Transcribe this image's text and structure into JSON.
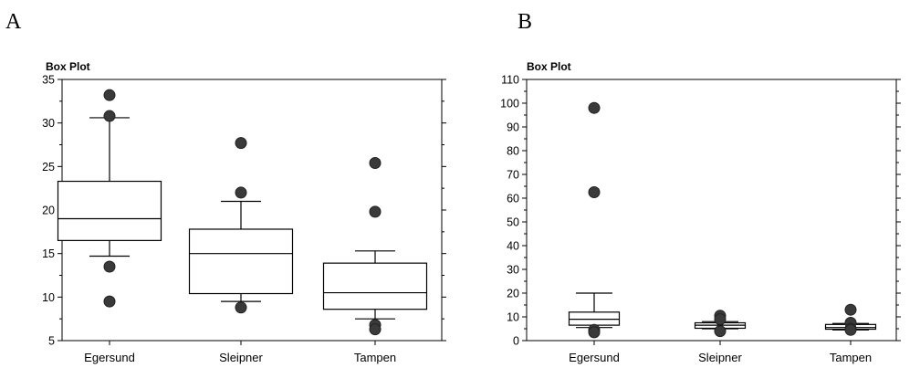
{
  "panel_labels": [
    "A",
    "B"
  ],
  "chart_data": [
    {
      "type": "box",
      "title": "Box Plot",
      "categories": [
        "Egersund",
        "Sleipner",
        "Tampen"
      ],
      "yticks": [
        5,
        10,
        15,
        20,
        25,
        30,
        35
      ],
      "ylim": [
        5,
        35
      ],
      "boxes": [
        {
          "whisker_low": 14.7,
          "q1": 16.5,
          "median": 19.0,
          "q3": 23.3,
          "whisker_high": 30.6,
          "outliers": [
            33.2,
            30.8,
            13.5,
            9.5
          ]
        },
        {
          "whisker_low": 9.5,
          "q1": 10.4,
          "median": 15.0,
          "q3": 17.8,
          "whisker_high": 21.0,
          "outliers": [
            27.7,
            22.0,
            8.8
          ]
        },
        {
          "whisker_low": 7.5,
          "q1": 8.6,
          "median": 10.5,
          "q3": 13.9,
          "whisker_high": 15.3,
          "outliers": [
            25.4,
            19.8,
            6.8,
            6.3
          ]
        }
      ]
    },
    {
      "type": "box",
      "title": "Box Plot",
      "categories": [
        "Egersund",
        "Sleipner",
        "Tampen"
      ],
      "yticks": [
        0,
        10,
        20,
        30,
        40,
        50,
        60,
        70,
        80,
        90,
        100,
        110
      ],
      "ylim": [
        0,
        110
      ],
      "boxes": [
        {
          "whisker_low": 5.5,
          "q1": 6.5,
          "median": 9.0,
          "q3": 12.0,
          "whisker_high": 20.0,
          "outliers": [
            98.0,
            62.5,
            4.5,
            3.5
          ]
        },
        {
          "whisker_low": 5.0,
          "q1": 5.2,
          "median": 6.5,
          "q3": 7.5,
          "whisker_high": 8.0,
          "outliers": [
            10.5,
            9.0,
            4.0
          ]
        },
        {
          "whisker_low": 4.5,
          "q1": 4.8,
          "median": 5.5,
          "q3": 6.8,
          "whisker_high": 7.2,
          "outliers": [
            13.0,
            7.5,
            5.0,
            4.5
          ]
        }
      ]
    }
  ]
}
